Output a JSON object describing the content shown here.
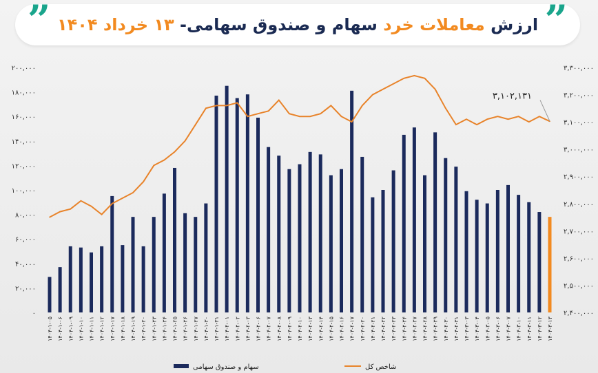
{
  "header": {
    "quote_mark": "”",
    "title_part1": "ارزش",
    "title_part2": "معاملات خرد",
    "title_part3": "سهام و صندوق سهامی-",
    "title_part4": "۱۳",
    "title_part5": "خرداد ۱۴۰۴"
  },
  "colors": {
    "bars": "#1b2a5c",
    "line": "#e8832a",
    "last_bar": "#f28a20",
    "accent": "#1aa58c"
  },
  "chart_data": {
    "type": "bar",
    "categories": [
      "۱۴۰۴-۱-۰۵",
      "۱۴۰۴-۱-۰۶",
      "۱۴۰۴-۱-۰۹",
      "۱۴۰۴-۱-۱۰",
      "۱۴۰۴-۱-۱۱",
      "۱۴۰۴-۱-۱۲",
      "۱۴۰۴-۱-۱۷",
      "۱۴۰۴-۱-۱۸",
      "۱۴۰۴-۱-۱۹",
      "۱۴۰۴-۱-۲۰",
      "۱۴۰۴-۱-۲۳",
      "۱۴۰۴-۱-۲۴",
      "۱۴۰۴-۱-۲۵",
      "۱۴۰۴-۱-۲۶",
      "۱۴۰۴-۱-۲۷",
      "۱۴۰۴-۱-۳۰",
      "۱۴۰۴-۱-۳۱",
      "۱۴۰۴-۲-۰۱",
      "۱۴۰۴-۲-۰۲",
      "۱۴۰۴-۲-۰۳",
      "۱۴۰۴-۲-۰۶",
      "۱۴۰۴-۲-۰۷",
      "۱۴۰۴-۲-۰۸",
      "۱۴۰۴-۲-۰۹",
      "۱۴۰۴-۲-۱۰",
      "۱۴۰۴-۲-۱۳",
      "۱۴۰۴-۲-۱۴",
      "۱۴۰۴-۲-۱۵",
      "۱۴۰۴-۲-۱۶",
      "۱۴۰۴-۲-۱۷",
      "۱۴۰۴-۲-۲۰",
      "۱۴۰۴-۲-۲۱",
      "۱۴۰۴-۲-۲۲",
      "۱۴۰۴-۲-۲۳",
      "۱۴۰۴-۲-۲۴",
      "۱۴۰۴-۲-۲۷",
      "۱۴۰۴-۲-۲۸",
      "۱۴۰۴-۲-۲۹",
      "۱۴۰۴-۲-۳۰",
      "۱۴۰۴-۲-۳۱",
      "۱۴۰۴-۳-۰۳",
      "۱۴۰۴-۳-۰۴",
      "۱۴۰۴-۳-۰۵",
      "۱۴۰۴-۳-۰۶",
      "۱۴۰۴-۳-۰۷",
      "۱۴۰۴-۳-۱۰",
      "۱۴۰۴-۳-۱۱",
      "۱۴۰۴-۳-۱۲",
      "۱۴۰۴-۳-۱۳"
    ],
    "series": [
      {
        "name": "سهام و صندوق سهامی",
        "axis": "left",
        "values": [
          29000,
          37000,
          54000,
          53000,
          49000,
          54000,
          95000,
          55000,
          78000,
          54000,
          78000,
          97000,
          118000,
          81000,
          78000,
          89000,
          177000,
          185000,
          175000,
          178000,
          159000,
          135000,
          128000,
          117000,
          121000,
          131000,
          129000,
          112000,
          117000,
          181000,
          127000,
          94000,
          100000,
          116000,
          145000,
          151000,
          112000,
          147000,
          126000,
          119000,
          99000,
          92000,
          89000,
          100000,
          104000,
          96000,
          90000,
          82000,
          78000
        ]
      },
      {
        "name": "شاخص کل",
        "axis": "right",
        "values": [
          2750000,
          2770000,
          2780000,
          2810000,
          2790000,
          2760000,
          2800000,
          2820000,
          2840000,
          2880000,
          2940000,
          2960000,
          2990000,
          3030000,
          3090000,
          3150000,
          3160000,
          3160000,
          3170000,
          3120000,
          3130000,
          3140000,
          3180000,
          3130000,
          3120000,
          3120000,
          3130000,
          3160000,
          3120000,
          3100000,
          3160000,
          3200000,
          3220000,
          3240000,
          3260000,
          3270000,
          3260000,
          3220000,
          3150000,
          3090000,
          3110000,
          3090000,
          3110000,
          3120000,
          3110000,
          3120000,
          3100000,
          3120000,
          3102131
        ]
      }
    ],
    "left_axis": {
      "min": 0,
      "max": 200000,
      "ticks": [
        "۰",
        "۲۰,۰۰۰",
        "۴۰,۰۰۰",
        "۶۰,۰۰۰",
        "۸۰,۰۰۰",
        "۱۰۰,۰۰۰",
        "۱۲۰,۰۰۰",
        "۱۴۰,۰۰۰",
        "۱۶۰,۰۰۰",
        "۱۸۰,۰۰۰",
        "۲۰۰,۰۰۰"
      ]
    },
    "right_axis": {
      "min": 2400000,
      "max": 3300000,
      "ticks": [
        "۲,۴۰۰,۰۰۰",
        "۲,۵۰۰,۰۰۰",
        "۲,۶۰۰,۰۰۰",
        "۲,۷۰۰,۰۰۰",
        "۲,۸۰۰,۰۰۰",
        "۲,۹۰۰,۰۰۰",
        "۳,۰۰۰,۰۰۰",
        "۳,۱۰۰,۰۰۰",
        "۳,۲۰۰,۰۰۰",
        "۳,۳۰۰,۰۰۰"
      ]
    },
    "annotation": "۳,۱۰۲,۱۳۱",
    "legend": [
      "سهام و صندوق سهامی",
      "شاخص کل"
    ],
    "legend_position": "bottom",
    "grid": false
  }
}
